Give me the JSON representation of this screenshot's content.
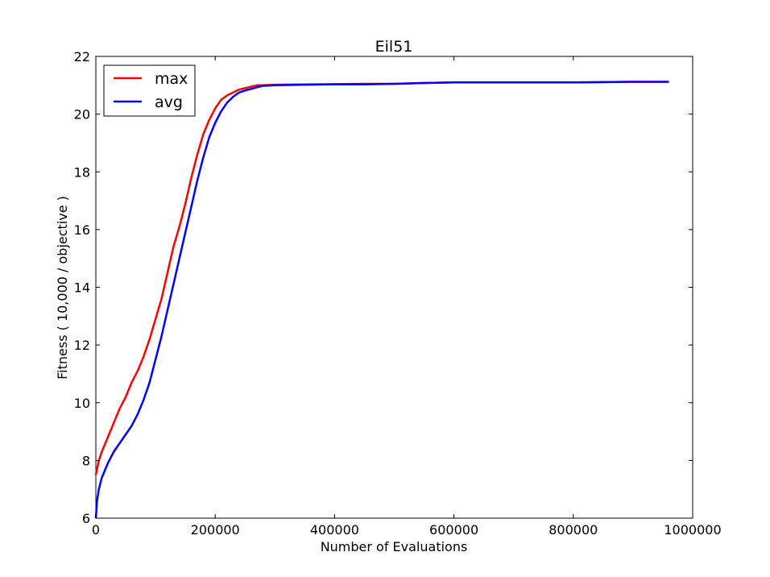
{
  "chart_data": {
    "type": "line",
    "title": "Eil51",
    "xlabel": "Number of Evaluations",
    "ylabel": "Fitness ( 10,000 / objective )",
    "xlim": [
      0,
      1000000
    ],
    "ylim": [
      6,
      22
    ],
    "xticks": [
      0,
      200000,
      400000,
      600000,
      800000,
      1000000
    ],
    "xtick_labels": [
      "0",
      "200000",
      "400000",
      "600000",
      "800000",
      "1000000"
    ],
    "yticks": [
      6,
      8,
      10,
      12,
      14,
      16,
      18,
      20,
      22
    ],
    "ytick_labels": [
      "6",
      "8",
      "10",
      "12",
      "14",
      "16",
      "18",
      "20",
      "22"
    ],
    "grid": false,
    "legend_position": "top-left",
    "series": [
      {
        "name": "max",
        "color": "#ff0000",
        "x": [
          0,
          5000,
          10000,
          20000,
          30000,
          40000,
          50000,
          60000,
          70000,
          80000,
          90000,
          100000,
          110000,
          120000,
          130000,
          140000,
          150000,
          160000,
          170000,
          180000,
          190000,
          200000,
          210000,
          220000,
          230000,
          240000,
          250000,
          260000,
          270000,
          280000,
          300000,
          350000,
          400000,
          450000,
          500000,
          550000,
          600000,
          700000,
          800000,
          900000,
          960000
        ],
        "y": [
          7.5,
          8.0,
          8.3,
          8.8,
          9.3,
          9.8,
          10.2,
          10.7,
          11.1,
          11.6,
          12.2,
          12.9,
          13.6,
          14.5,
          15.4,
          16.1,
          16.9,
          17.8,
          18.6,
          19.3,
          19.8,
          20.2,
          20.5,
          20.65,
          20.75,
          20.85,
          20.9,
          20.95,
          21.0,
          21.0,
          21.02,
          21.03,
          21.04,
          21.05,
          21.05,
          21.08,
          21.1,
          21.1,
          21.1,
          21.12,
          21.12
        ]
      },
      {
        "name": "avg",
        "color": "#0000ff",
        "x": [
          0,
          2000,
          5000,
          10000,
          20000,
          30000,
          40000,
          50000,
          60000,
          70000,
          80000,
          90000,
          100000,
          110000,
          120000,
          130000,
          140000,
          150000,
          160000,
          170000,
          180000,
          190000,
          200000,
          210000,
          220000,
          230000,
          240000,
          250000,
          260000,
          270000,
          280000,
          300000,
          350000,
          400000,
          450000,
          500000,
          550000,
          600000,
          700000,
          800000,
          900000,
          960000
        ],
        "y": [
          6.0,
          6.6,
          7.0,
          7.4,
          7.9,
          8.3,
          8.6,
          8.9,
          9.2,
          9.6,
          10.1,
          10.7,
          11.5,
          12.3,
          13.2,
          14.1,
          15.0,
          15.9,
          16.8,
          17.7,
          18.5,
          19.2,
          19.7,
          20.1,
          20.4,
          20.6,
          20.75,
          20.82,
          20.87,
          20.93,
          20.98,
          21.0,
          21.02,
          21.03,
          21.03,
          21.05,
          21.08,
          21.1,
          21.1,
          21.1,
          21.12,
          21.12
        ]
      }
    ]
  }
}
